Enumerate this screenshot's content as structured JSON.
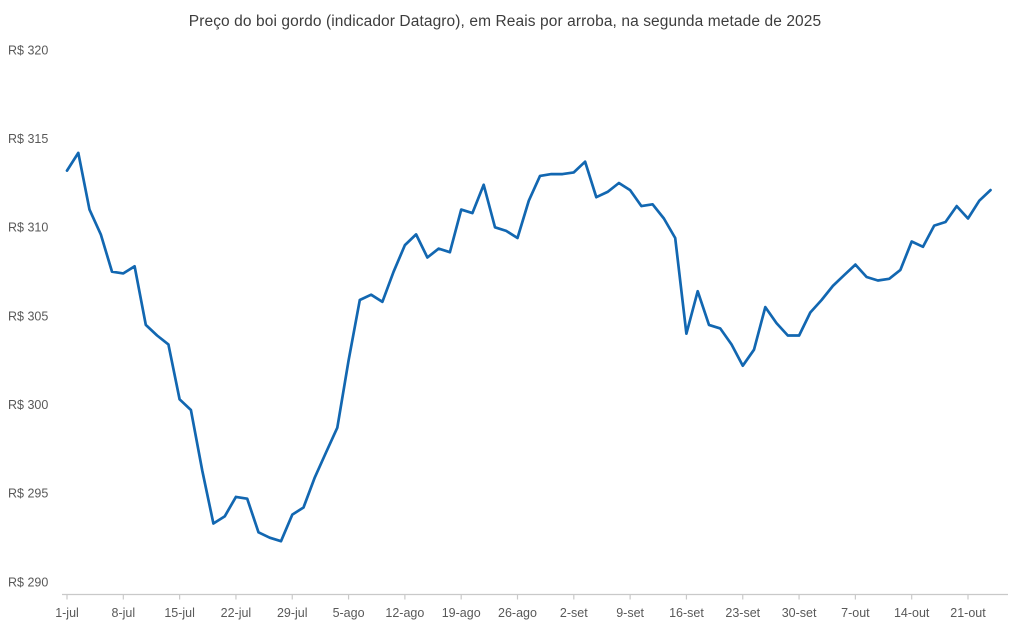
{
  "chart_data": {
    "type": "line",
    "title": "Preço do boi gordo (indicador Datagro), em Reais por arroba, na segunda metade de 2025",
    "xlabel": "",
    "ylabel": "",
    "ylim": [
      290,
      320
    ],
    "y_tick_step": 5,
    "currency_prefix": "R$",
    "grid": false,
    "legend": "none",
    "colors": {
      "line": "#1267b1",
      "title": "#3d3d3d",
      "tick_label": "#595959",
      "axis": "#c9c9c9"
    },
    "y_ticks": [
      {
        "label": "R$ 290",
        "value": 290
      },
      {
        "label": "R$ 295",
        "value": 295
      },
      {
        "label": "R$ 300",
        "value": 300
      },
      {
        "label": "R$ 305",
        "value": 305
      },
      {
        "label": "R$ 310",
        "value": 310
      },
      {
        "label": "R$ 315",
        "value": 315
      },
      {
        "label": "R$ 320",
        "value": 320
      }
    ],
    "x_ticks": [
      {
        "label": "1-jul",
        "index": 0
      },
      {
        "label": "8-jul",
        "index": 5
      },
      {
        "label": "15-jul",
        "index": 10
      },
      {
        "label": "22-jul",
        "index": 15
      },
      {
        "label": "29-jul",
        "index": 20
      },
      {
        "label": "5-ago",
        "index": 25
      },
      {
        "label": "12-ago",
        "index": 30
      },
      {
        "label": "19-ago",
        "index": 35
      },
      {
        "label": "26-ago",
        "index": 40
      },
      {
        "label": "2-set",
        "index": 45
      },
      {
        "label": "9-set",
        "index": 50
      },
      {
        "label": "16-set",
        "index": 55
      },
      {
        "label": "23-set",
        "index": 60
      },
      {
        "label": "30-set",
        "index": 65
      },
      {
        "label": "7-out",
        "index": 70
      },
      {
        "label": "14-out",
        "index": 75
      },
      {
        "label": "21-out",
        "index": 80
      }
    ],
    "x": [
      "1-jul",
      "2-jul",
      "3-jul",
      "4-jul",
      "7-jul",
      "8-jul",
      "9-jul",
      "10-jul",
      "11-jul",
      "14-jul",
      "15-jul",
      "16-jul",
      "17-jul",
      "18-jul",
      "21-jul",
      "22-jul",
      "23-jul",
      "24-jul",
      "25-jul",
      "28-jul",
      "29-jul",
      "30-jul",
      "31-jul",
      "1-ago",
      "4-ago",
      "5-ago",
      "6-ago",
      "7-ago",
      "8-ago",
      "11-ago",
      "12-ago",
      "13-ago",
      "14-ago",
      "15-ago",
      "18-ago",
      "19-ago",
      "20-ago",
      "21-ago",
      "22-ago",
      "25-ago",
      "26-ago",
      "27-ago",
      "28-ago",
      "29-ago",
      "1-set",
      "2-set",
      "3-set",
      "4-set",
      "5-set",
      "8-set",
      "9-set",
      "10-set",
      "11-set",
      "12-set",
      "15-set",
      "16-set",
      "17-set",
      "18-set",
      "19-set",
      "22-set",
      "23-set",
      "24-set",
      "25-set",
      "26-set",
      "29-set",
      "30-set",
      "1-out",
      "2-out",
      "3-out",
      "6-out",
      "7-out",
      "8-out",
      "9-out",
      "10-out",
      "13-out",
      "14-out",
      "15-out",
      "16-out",
      "17-out",
      "20-out",
      "21-out",
      "22-out",
      "23-out"
    ],
    "series": [
      {
        "name": "Preço do boi gordo (R$/arroba)",
        "values": [
          313.2,
          314.2,
          311.0,
          309.6,
          307.5,
          307.4,
          307.8,
          304.5,
          303.9,
          303.4,
          300.3,
          299.7,
          296.3,
          293.3,
          293.7,
          294.8,
          294.7,
          292.8,
          292.5,
          292.3,
          293.8,
          294.2,
          295.9,
          297.3,
          298.7,
          302.5,
          305.9,
          306.2,
          305.8,
          307.5,
          309.0,
          309.6,
          308.3,
          308.8,
          308.6,
          311.0,
          310.8,
          312.4,
          310.0,
          309.8,
          309.4,
          311.5,
          312.9,
          313.0,
          313.0,
          313.1,
          313.7,
          311.7,
          312.0,
          312.5,
          312.1,
          311.2,
          311.3,
          310.5,
          309.4,
          304.0,
          306.4,
          304.5,
          304.3,
          303.4,
          302.2,
          303.1,
          305.5,
          304.6,
          303.9,
          303.9,
          305.2,
          305.9,
          306.7,
          307.3,
          307.9,
          307.2,
          307.0,
          307.1,
          307.6,
          309.2,
          308.9,
          310.1,
          310.3,
          311.2,
          310.5,
          311.5,
          312.1
        ]
      }
    ]
  }
}
